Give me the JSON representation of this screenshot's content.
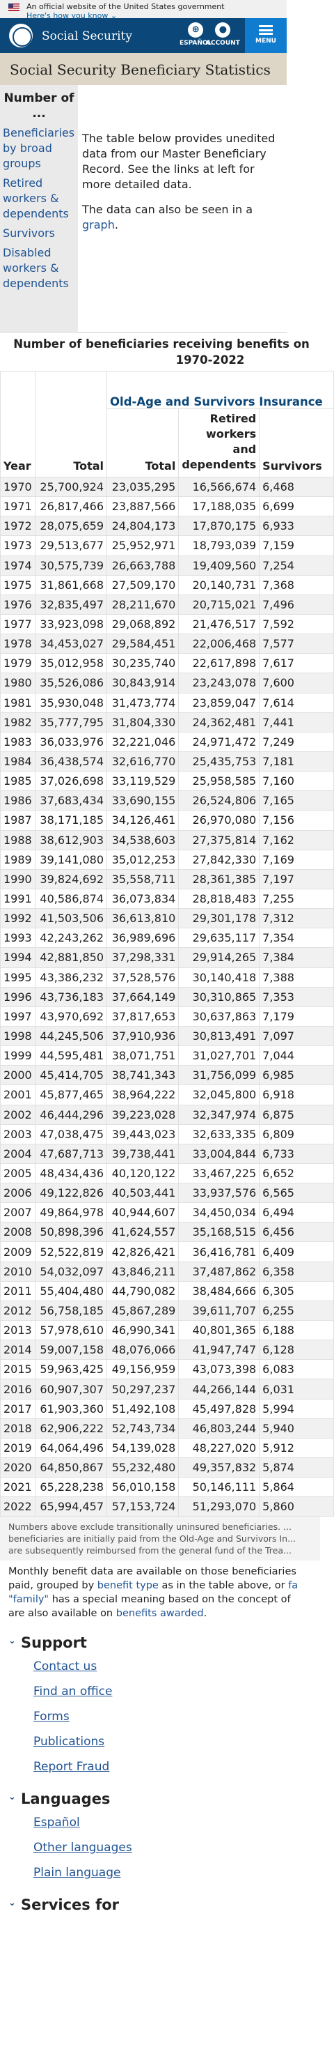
{
  "banner": {
    "official_text": "An official website of the United States government",
    "how_link": "Here's how you know"
  },
  "header": {
    "brand": "Social Security",
    "espanol_label": "ESPAÑOL",
    "account_label": "ACCOUNT",
    "menu_label": "MENU"
  },
  "page_title": "Social Security Beneficiary Statistics",
  "sidenav": {
    "heading": "Number of ...",
    "items": [
      "Beneficiaries by broad groups",
      "Retired workers & dependents",
      "Survivors",
      "Disabled workers & dependents"
    ]
  },
  "intro": {
    "p1": "The table below provides unedited data from our Master Beneficiary Record. See the links at left for more detailed data.",
    "p2_prefix": "The data can also be seen in a ",
    "p2_link": "graph",
    "p2_suffix": "."
  },
  "table": {
    "title": "Number of beneficiaries receiving benefits on",
    "title_line2": "1970-2022",
    "group_header": "Old-Age and Survivors Insurance",
    "col_headers": [
      "Year",
      "Total",
      "Total",
      "Retired workers and dependents",
      "Survivors"
    ],
    "rows": [
      [
        "1970",
        "25,700,924",
        "23,035,295",
        "16,566,674",
        "6,468"
      ],
      [
        "1971",
        "26,817,466",
        "23,887,566",
        "17,188,035",
        "6,699"
      ],
      [
        "1972",
        "28,075,659",
        "24,804,173",
        "17,870,175",
        "6,933"
      ],
      [
        "1973",
        "29,513,677",
        "25,952,971",
        "18,793,039",
        "7,159"
      ],
      [
        "1974",
        "30,575,739",
        "26,663,788",
        "19,409,560",
        "7,254"
      ],
      [
        "1975",
        "31,861,668",
        "27,509,170",
        "20,140,731",
        "7,368"
      ],
      [
        "1976",
        "32,835,497",
        "28,211,670",
        "20,715,021",
        "7,496"
      ],
      [
        "1977",
        "33,923,098",
        "29,068,892",
        "21,476,517",
        "7,592"
      ],
      [
        "1978",
        "34,453,027",
        "29,584,451",
        "22,006,468",
        "7,577"
      ],
      [
        "1979",
        "35,012,958",
        "30,235,740",
        "22,617,898",
        "7,617"
      ],
      [
        "1980",
        "35,526,086",
        "30,843,914",
        "23,243,078",
        "7,600"
      ],
      [
        "1981",
        "35,930,048",
        "31,473,774",
        "23,859,047",
        "7,614"
      ],
      [
        "1982",
        "35,777,795",
        "31,804,330",
        "24,362,481",
        "7,441"
      ],
      [
        "1983",
        "36,033,976",
        "32,221,046",
        "24,971,472",
        "7,249"
      ],
      [
        "1984",
        "36,438,574",
        "32,616,770",
        "25,435,753",
        "7,181"
      ],
      [
        "1985",
        "37,026,698",
        "33,119,529",
        "25,958,585",
        "7,160"
      ],
      [
        "1986",
        "37,683,434",
        "33,690,155",
        "26,524,806",
        "7,165"
      ],
      [
        "1987",
        "38,171,185",
        "34,126,461",
        "26,970,080",
        "7,156"
      ],
      [
        "1988",
        "38,612,903",
        "34,538,603",
        "27,375,814",
        "7,162"
      ],
      [
        "1989",
        "39,141,080",
        "35,012,253",
        "27,842,330",
        "7,169"
      ],
      [
        "1990",
        "39,824,692",
        "35,558,711",
        "28,361,385",
        "7,197"
      ],
      [
        "1991",
        "40,586,874",
        "36,073,834",
        "28,818,483",
        "7,255"
      ],
      [
        "1992",
        "41,503,506",
        "36,613,810",
        "29,301,178",
        "7,312"
      ],
      [
        "1993",
        "42,243,262",
        "36,989,696",
        "29,635,117",
        "7,354"
      ],
      [
        "1994",
        "42,881,850",
        "37,298,331",
        "29,914,265",
        "7,384"
      ],
      [
        "1995",
        "43,386,232",
        "37,528,576",
        "30,140,418",
        "7,388"
      ],
      [
        "1996",
        "43,736,183",
        "37,664,149",
        "30,310,865",
        "7,353"
      ],
      [
        "1997",
        "43,970,692",
        "37,817,653",
        "30,637,863",
        "7,179"
      ],
      [
        "1998",
        "44,245,506",
        "37,910,936",
        "30,813,491",
        "7,097"
      ],
      [
        "1999",
        "44,595,481",
        "38,071,751",
        "31,027,701",
        "7,044"
      ],
      [
        "2000",
        "45,414,705",
        "38,741,343",
        "31,756,099",
        "6,985"
      ],
      [
        "2001",
        "45,877,465",
        "38,964,222",
        "32,045,800",
        "6,918"
      ],
      [
        "2002",
        "46,444,296",
        "39,223,028",
        "32,347,974",
        "6,875"
      ],
      [
        "2003",
        "47,038,475",
        "39,443,023",
        "32,633,335",
        "6,809"
      ],
      [
        "2004",
        "47,687,713",
        "39,738,441",
        "33,004,844",
        "6,733"
      ],
      [
        "2005",
        "48,434,436",
        "40,120,122",
        "33,467,225",
        "6,652"
      ],
      [
        "2006",
        "49,122,826",
        "40,503,441",
        "33,937,576",
        "6,565"
      ],
      [
        "2007",
        "49,864,978",
        "40,944,607",
        "34,450,034",
        "6,494"
      ],
      [
        "2008",
        "50,898,396",
        "41,624,557",
        "35,168,515",
        "6,456"
      ],
      [
        "2009",
        "52,522,819",
        "42,826,421",
        "36,416,781",
        "6,409"
      ],
      [
        "2010",
        "54,032,097",
        "43,846,211",
        "37,487,862",
        "6,358"
      ],
      [
        "2011",
        "55,404,480",
        "44,790,082",
        "38,484,666",
        "6,305"
      ],
      [
        "2012",
        "56,758,185",
        "45,867,289",
        "39,611,707",
        "6,255"
      ],
      [
        "2013",
        "57,978,610",
        "46,990,341",
        "40,801,365",
        "6,188"
      ],
      [
        "2014",
        "59,007,158",
        "48,076,066",
        "41,947,747",
        "6,128"
      ],
      [
        "2015",
        "59,963,425",
        "49,156,959",
        "43,073,398",
        "6,083"
      ],
      [
        "2016",
        "60,907,307",
        "50,297,237",
        "44,266,144",
        "6,031"
      ],
      [
        "2017",
        "61,903,360",
        "51,492,108",
        "45,497,828",
        "5,994"
      ],
      [
        "2018",
        "62,906,222",
        "52,743,734",
        "46,803,244",
        "5,940"
      ],
      [
        "2019",
        "64,064,496",
        "54,139,028",
        "48,227,020",
        "5,912"
      ],
      [
        "2020",
        "64,850,867",
        "55,232,480",
        "49,357,832",
        "5,874"
      ],
      [
        "2021",
        "65,228,238",
        "56,010,158",
        "50,146,111",
        "5,864"
      ],
      [
        "2022",
        "65,994,457",
        "57,153,724",
        "51,293,070",
        "5,860"
      ]
    ]
  },
  "note": "Numbers above exclude transitionally uninsured beneficiaries. ... beneficiaries are initially paid from the Old-Age and Survivors In... are subsequently reimbursed from the general fund of the Trea...",
  "monthly": {
    "prefix": "Monthly benefit data are available on those beneficiaries paid, grouped by ",
    "link1": "benefit type",
    "mid": " as in the table above, or ",
    "link2": "fa",
    "line2_link": "\"family\"",
    "line2_text": " has a special meaning based on the concept of",
    "line3_prefix": "are also available on ",
    "line3_link": "benefits awarded",
    "line3_suffix": "."
  },
  "footer": {
    "support": {
      "heading": "Support",
      "links": [
        "Contact us",
        "Find an office",
        "Forms",
        "Publications",
        "Report Fraud"
      ]
    },
    "languages": {
      "heading": "Languages",
      "links": [
        "Español",
        "Other languages",
        "Plain language"
      ]
    },
    "services_heading": "Services for"
  }
}
